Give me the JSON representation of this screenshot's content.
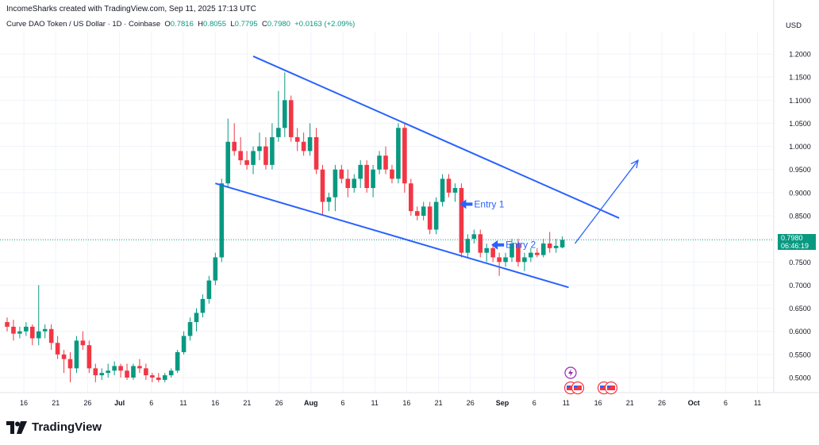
{
  "header": {
    "attribution": "IncomeSharks created with TradingView.com, Sep 11, 2025 17:13 UTC",
    "symbol": "Curve DAO Token / US Dollar · 1D · Coinbase",
    "ohlc": {
      "o_label": "O",
      "o": "0.7816",
      "h_label": "H",
      "h": "0.8055",
      "l_label": "L",
      "l": "0.7795",
      "c_label": "C",
      "c": "0.7980",
      "change": "+0.0163 (+2.09%)"
    },
    "currency": "USD"
  },
  "price_badge": {
    "price": "0.7980",
    "countdown": "06:46:19"
  },
  "logo": {
    "text": "TradingView"
  },
  "colors": {
    "up": "#089981",
    "down": "#f23645",
    "lines": "#2962ff",
    "grid": "#f0f3fa"
  },
  "chart_data": {
    "type": "candlestick",
    "y_axis_labels": [
      "1.2000",
      "1.1500",
      "1.1000",
      "1.0500",
      "1.0000",
      "0.9500",
      "0.9000",
      "0.8500",
      "0.8000",
      "0.7500",
      "0.7000",
      "0.6500",
      "0.6000",
      "0.5500",
      "0.5000"
    ],
    "ylim": [
      0.45,
      1.22
    ],
    "x_axis_labels": [
      "16",
      "21",
      "26",
      "Jul",
      "6",
      "11",
      "16",
      "21",
      "26",
      "Aug",
      "6",
      "11",
      "16",
      "21",
      "26",
      "Sep",
      "6",
      "11",
      "16",
      "21",
      "26",
      "Oct",
      "6",
      "11"
    ],
    "candles": [
      [
        0.62,
        0.63,
        0.6,
        0.61
      ],
      [
        0.61,
        0.625,
        0.58,
        0.595
      ],
      [
        0.595,
        0.61,
        0.585,
        0.6
      ],
      [
        0.6,
        0.62,
        0.59,
        0.61
      ],
      [
        0.61,
        0.615,
        0.57,
        0.585
      ],
      [
        0.585,
        0.7,
        0.57,
        0.6
      ],
      [
        0.6,
        0.615,
        0.585,
        0.605
      ],
      [
        0.605,
        0.615,
        0.56,
        0.575
      ],
      [
        0.575,
        0.59,
        0.54,
        0.55
      ],
      [
        0.55,
        0.56,
        0.51,
        0.54
      ],
      [
        0.54,
        0.555,
        0.49,
        0.52
      ],
      [
        0.52,
        0.59,
        0.51,
        0.58
      ],
      [
        0.58,
        0.6,
        0.56,
        0.57
      ],
      [
        0.57,
        0.58,
        0.51,
        0.52
      ],
      [
        0.52,
        0.53,
        0.49,
        0.505
      ],
      [
        0.505,
        0.52,
        0.495,
        0.51
      ],
      [
        0.51,
        0.53,
        0.5,
        0.515
      ],
      [
        0.515,
        0.535,
        0.505,
        0.525
      ],
      [
        0.525,
        0.53,
        0.5,
        0.515
      ],
      [
        0.515,
        0.53,
        0.495,
        0.5
      ],
      [
        0.5,
        0.53,
        0.495,
        0.525
      ],
      [
        0.525,
        0.54,
        0.51,
        0.52
      ],
      [
        0.52,
        0.53,
        0.495,
        0.505
      ],
      [
        0.505,
        0.51,
        0.49,
        0.5
      ],
      [
        0.5,
        0.51,
        0.49,
        0.495
      ],
      [
        0.495,
        0.51,
        0.49,
        0.505
      ],
      [
        0.505,
        0.52,
        0.5,
        0.515
      ],
      [
        0.515,
        0.56,
        0.51,
        0.555
      ],
      [
        0.555,
        0.6,
        0.55,
        0.59
      ],
      [
        0.59,
        0.63,
        0.58,
        0.62
      ],
      [
        0.62,
        0.65,
        0.6,
        0.64
      ],
      [
        0.64,
        0.68,
        0.63,
        0.67
      ],
      [
        0.67,
        0.72,
        0.66,
        0.71
      ],
      [
        0.71,
        0.77,
        0.7,
        0.76
      ],
      [
        0.76,
        0.93,
        0.75,
        0.92
      ],
      [
        0.92,
        1.06,
        0.91,
        1.01
      ],
      [
        1.01,
        1.05,
        0.98,
        0.99
      ],
      [
        0.99,
        1.02,
        0.96,
        0.97
      ],
      [
        0.97,
        0.99,
        0.95,
        0.96
      ],
      [
        0.96,
        1.0,
        0.94,
        0.99
      ],
      [
        0.99,
        1.03,
        0.97,
        1.0
      ],
      [
        1.0,
        1.02,
        0.95,
        0.96
      ],
      [
        0.96,
        1.05,
        0.95,
        1.02
      ],
      [
        1.02,
        1.12,
        1.01,
        1.04
      ],
      [
        1.04,
        1.16,
        1.02,
        1.1
      ],
      [
        1.1,
        1.11,
        1.01,
        1.02
      ],
      [
        1.02,
        1.04,
        0.99,
        1.01
      ],
      [
        1.01,
        1.03,
        0.98,
        0.99
      ],
      [
        0.99,
        1.05,
        0.98,
        1.02
      ],
      [
        1.02,
        1.04,
        0.94,
        0.95
      ],
      [
        0.95,
        0.96,
        0.85,
        0.88
      ],
      [
        0.88,
        0.9,
        0.86,
        0.89
      ],
      [
        0.89,
        0.96,
        0.86,
        0.95
      ],
      [
        0.95,
        0.96,
        0.92,
        0.93
      ],
      [
        0.93,
        0.95,
        0.89,
        0.91
      ],
      [
        0.91,
        0.94,
        0.9,
        0.93
      ],
      [
        0.93,
        0.97,
        0.91,
        0.96
      ],
      [
        0.96,
        0.97,
        0.9,
        0.91
      ],
      [
        0.91,
        0.96,
        0.89,
        0.95
      ],
      [
        0.95,
        0.99,
        0.94,
        0.98
      ],
      [
        0.98,
        1.0,
        0.94,
        0.95
      ],
      [
        0.95,
        0.96,
        0.92,
        0.93
      ],
      [
        0.93,
        1.05,
        0.92,
        1.04
      ],
      [
        1.04,
        1.05,
        0.9,
        0.92
      ],
      [
        0.92,
        0.93,
        0.85,
        0.86
      ],
      [
        0.86,
        0.87,
        0.84,
        0.85
      ],
      [
        0.85,
        0.88,
        0.84,
        0.87
      ],
      [
        0.87,
        0.88,
        0.81,
        0.82
      ],
      [
        0.82,
        0.89,
        0.81,
        0.88
      ],
      [
        0.88,
        0.94,
        0.87,
        0.93
      ],
      [
        0.93,
        0.94,
        0.89,
        0.9
      ],
      [
        0.9,
        0.92,
        0.88,
        0.91
      ],
      [
        0.91,
        0.92,
        0.76,
        0.77
      ],
      [
        0.77,
        0.81,
        0.76,
        0.8
      ],
      [
        0.8,
        0.82,
        0.79,
        0.81
      ],
      [
        0.81,
        0.82,
        0.76,
        0.77
      ],
      [
        0.77,
        0.79,
        0.75,
        0.78
      ],
      [
        0.78,
        0.79,
        0.75,
        0.76
      ],
      [
        0.76,
        0.77,
        0.72,
        0.75
      ],
      [
        0.75,
        0.77,
        0.74,
        0.76
      ],
      [
        0.76,
        0.8,
        0.75,
        0.79
      ],
      [
        0.79,
        0.8,
        0.74,
        0.75
      ],
      [
        0.75,
        0.77,
        0.73,
        0.76
      ],
      [
        0.76,
        0.78,
        0.75,
        0.77
      ],
      [
        0.77,
        0.78,
        0.76,
        0.765
      ],
      [
        0.765,
        0.8,
        0.76,
        0.79
      ],
      [
        0.79,
        0.815,
        0.77,
        0.78
      ],
      [
        0.78,
        0.8,
        0.77,
        0.785
      ],
      [
        0.7816,
        0.8055,
        0.7795,
        0.798
      ]
    ],
    "annotations": [
      {
        "text": "Entry 1",
        "x_index": 72,
        "price": 0.875
      },
      {
        "text": "Entry 2",
        "x_index": 77,
        "price": 0.787
      }
    ],
    "trendlines": [
      {
        "from": [
          39,
          1.195
        ],
        "to": [
          97,
          0.845
        ]
      },
      {
        "from": [
          33,
          0.92
        ],
        "to": [
          89,
          0.695
        ]
      }
    ],
    "projection": {
      "from": [
        90,
        0.79
      ],
      "to": [
        100,
        0.97
      ]
    },
    "last_price": 0.798
  }
}
